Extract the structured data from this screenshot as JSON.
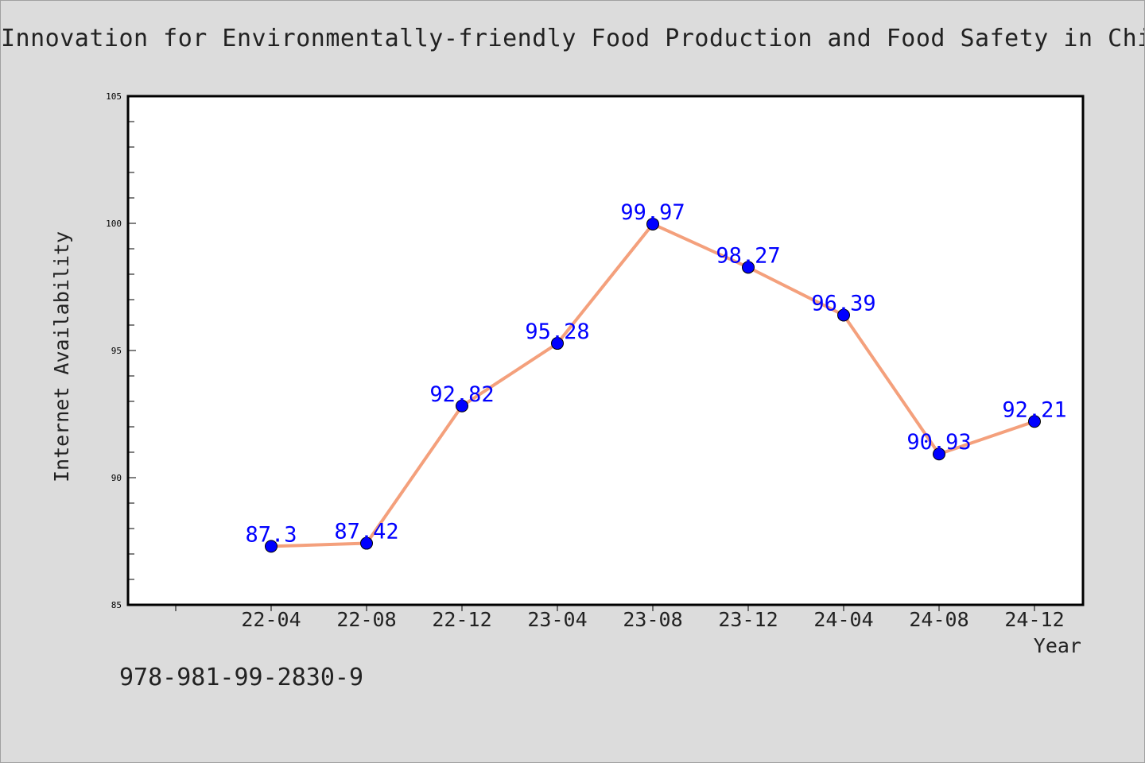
{
  "chart_data": {
    "type": "line",
    "title": "Innovation for Environmentally-friendly Food Production and Food Safety in China",
    "xlabel": "Year",
    "ylabel": "Internet Availability",
    "categories": [
      "22-04",
      "22-08",
      "22-12",
      "23-04",
      "23-08",
      "23-12",
      "24-04",
      "24-08",
      "24-12"
    ],
    "series": [
      {
        "values": [
          87.3,
          87.42,
          92.82,
          95.28,
          99.97,
          98.27,
          96.39,
          90.93,
          92.21
        ],
        "labels": [
          "87.3",
          "87.42",
          "92.82",
          "95.28",
          "99.97",
          "98.27",
          "96.39",
          "90.93",
          "92.21"
        ]
      }
    ],
    "ylim": [
      85,
      105
    ],
    "yticks": [
      "85",
      "90",
      "95",
      "100",
      "105"
    ],
    "grid": false,
    "legend": "none",
    "colors": {
      "line": "#f4a07c",
      "marker": "#0000ff",
      "label": "#0000ff",
      "plot_bg": "#ffffff",
      "figure_bg": "#dcdcdc"
    }
  },
  "annotation": "978-981-99-2830-9"
}
